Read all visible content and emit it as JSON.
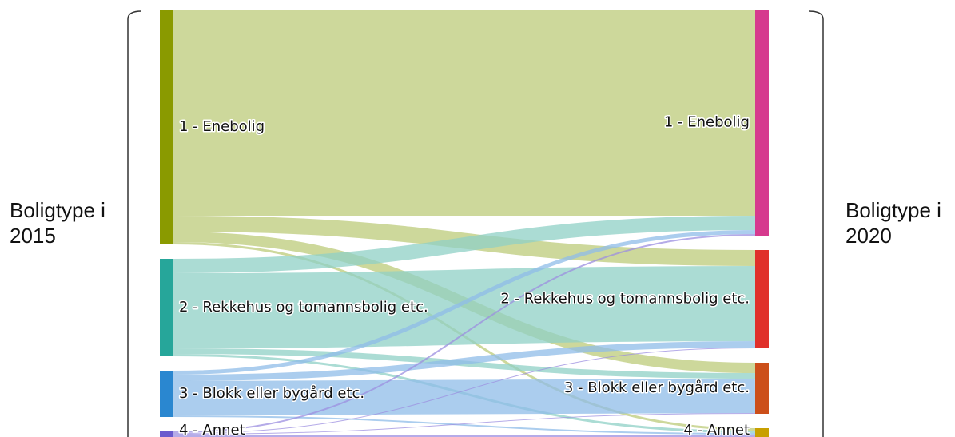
{
  "chart_data": {
    "type": "sankey",
    "left_label": "Boligtype i 2015",
    "right_label": "Boligtype i 2020",
    "nodes": [
      {
        "name": "1 - Enebolig",
        "color": "#8a9a00",
        "column": 0
      },
      {
        "name": "2 - Rekkehus og tomannsbolig etc.",
        "color": "#26a69a",
        "column": 0
      },
      {
        "name": "3 - Blokk eller bygård etc.",
        "color": "#2a87d0",
        "column": 0
      },
      {
        "name": "4 - Annet",
        "color": "#6a5acd",
        "column": 0
      },
      {
        "name": "1 - Enebolig",
        "color": "#d63a8e",
        "column": 1
      },
      {
        "name": "2 - Rekkehus og tomannsbolig etc.",
        "color": "#e0302a",
        "column": 1
      },
      {
        "name": "3 - Blokk eller bygård etc.",
        "color": "#cc4f1a",
        "column": 1
      },
      {
        "name": "4 - Annet",
        "color": "#c8a000",
        "column": 1
      }
    ],
    "link_colors": [
      "#bccb7a",
      "#8fd0c6",
      "#8fbce8",
      "#9c8fe0"
    ],
    "links": [
      {
        "source": 0,
        "target": 4,
        "value": 258
      },
      {
        "source": 0,
        "target": 5,
        "value": 20
      },
      {
        "source": 0,
        "target": 6,
        "value": 13
      },
      {
        "source": 0,
        "target": 7,
        "value": 3
      },
      {
        "source": 1,
        "target": 4,
        "value": 18
      },
      {
        "source": 1,
        "target": 5,
        "value": 94
      },
      {
        "source": 1,
        "target": 6,
        "value": 7
      },
      {
        "source": 1,
        "target": 7,
        "value": 3
      },
      {
        "source": 2,
        "target": 4,
        "value": 5
      },
      {
        "source": 2,
        "target": 5,
        "value": 8
      },
      {
        "source": 2,
        "target": 6,
        "value": 43
      },
      {
        "source": 2,
        "target": 7,
        "value": 2
      },
      {
        "source": 3,
        "target": 4,
        "value": 2
      },
      {
        "source": 3,
        "target": 5,
        "value": 1
      },
      {
        "source": 3,
        "target": 6,
        "value": 1
      },
      {
        "source": 3,
        "target": 7,
        "value": 4
      }
    ]
  }
}
